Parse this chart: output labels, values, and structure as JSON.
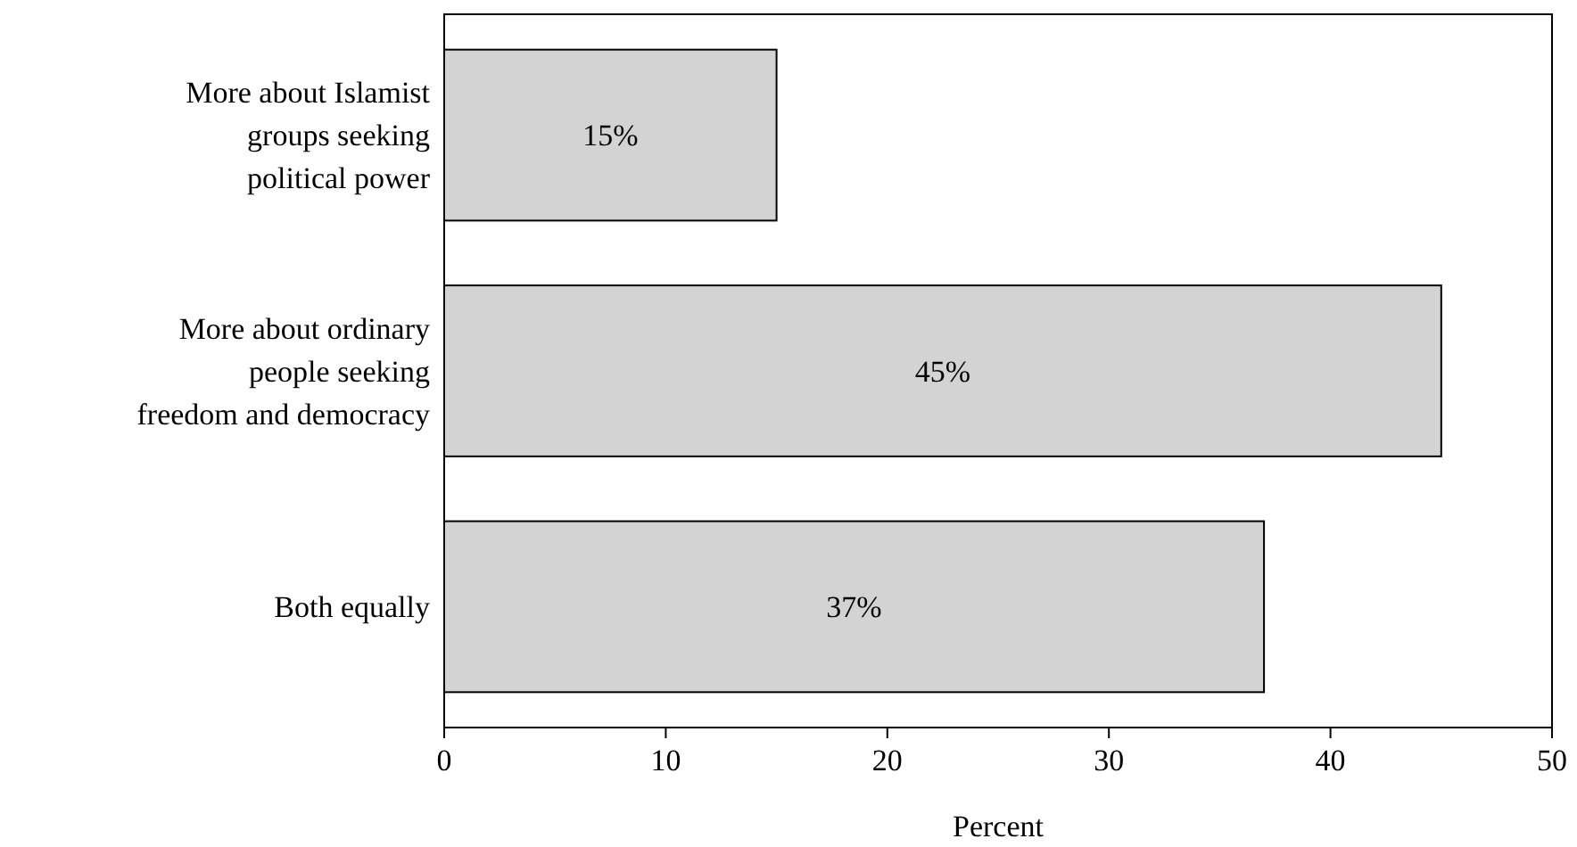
{
  "chart_data": {
    "type": "bar",
    "orientation": "horizontal",
    "xlabel": "Percent",
    "categories": [
      "More about Islamist groups seeking political power",
      "More about ordinary people seeking freedom and democracy",
      "Both equally"
    ],
    "values": [
      15,
      45,
      37
    ],
    "value_labels": [
      "15%",
      "45%",
      "37%"
    ],
    "color": "#d3d3d3",
    "xlim": [
      0,
      50
    ],
    "xticks": [
      0,
      10,
      20,
      30,
      40,
      50
    ],
    "grid": false
  }
}
